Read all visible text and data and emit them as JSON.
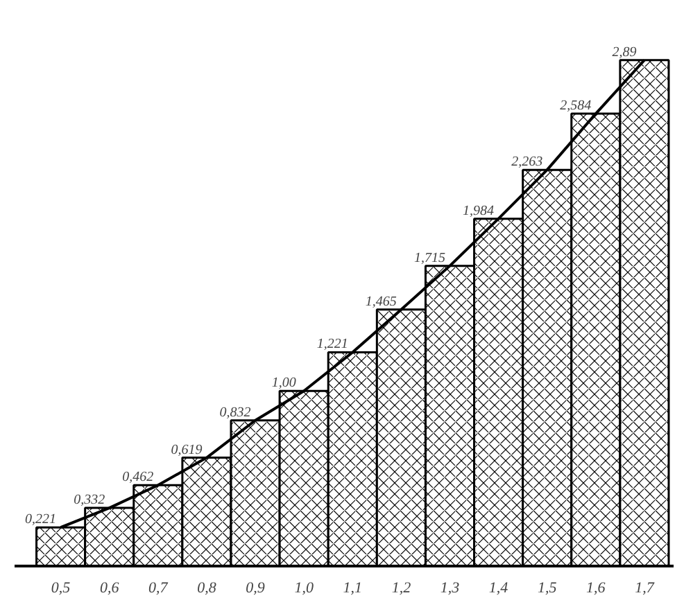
{
  "chart_data": {
    "type": "bar",
    "categories": [
      "0,5",
      "0,6",
      "0,7",
      "0,8",
      "0,9",
      "1,0",
      "1,1",
      "1,2",
      "1,3",
      "1,4",
      "1,5",
      "1,6",
      "1,7"
    ],
    "series": [
      {
        "color": "#000000",
        "values": [
          0.221,
          0.332,
          0.462,
          0.619,
          0.832,
          1.0,
          1.221,
          1.465,
          1.715,
          1.984,
          2.263,
          2.584,
          2.89
        ],
        "value_labels": [
          "0,221",
          "0,332",
          "0,462",
          "0,619",
          "0,832",
          "1,00",
          "1,221",
          "1,465",
          "1,715",
          "1,984",
          "2,263",
          "2,584",
          "2,89"
        ]
      },
      {
        "type": "line",
        "color": "#000000",
        "values": [
          0.221,
          0.332,
          0.462,
          0.619,
          0.832,
          1.0,
          1.221,
          1.465,
          1.715,
          1.984,
          2.263,
          2.584,
          2.89
        ]
      }
    ],
    "grid": false
  }
}
